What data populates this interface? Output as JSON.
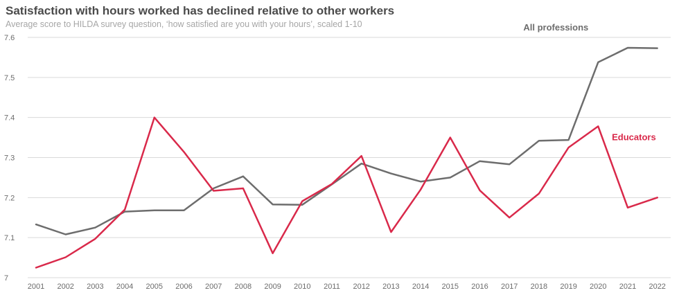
{
  "chart_data": {
    "type": "line",
    "title": "Satisfaction with hours worked has declined relative to other workers",
    "subtitle": "Average score to HILDA survey question, ‘how satisfied are you with your hours’, scaled 1-10",
    "x": [
      "2001",
      "2002",
      "2003",
      "2004",
      "2005",
      "2006",
      "2007",
      "2008",
      "2009",
      "2010",
      "2011",
      "2012",
      "2013",
      "2014",
      "2015",
      "2016",
      "2017",
      "2018",
      "2019",
      "2020",
      "2021",
      "2022"
    ],
    "ylim": [
      7,
      7.6
    ],
    "yticks": [
      "7",
      "7.1",
      "7.2",
      "7.3",
      "7.4",
      "7.5",
      "7.6"
    ],
    "grid": true,
    "series": [
      {
        "name": "All professions",
        "color": "#6d6d6d",
        "values": [
          7.133,
          7.108,
          7.125,
          7.165,
          7.168,
          7.168,
          7.223,
          7.253,
          7.183,
          7.182,
          7.233,
          7.285,
          7.26,
          7.24,
          7.25,
          7.291,
          7.283,
          7.342,
          7.344,
          7.538,
          7.574,
          7.573
        ]
      },
      {
        "name": "Educators",
        "color": "#d9294a",
        "values": [
          7.025,
          7.051,
          7.097,
          7.17,
          7.4,
          7.314,
          7.217,
          7.223,
          7.061,
          7.191,
          7.234,
          7.304,
          7.114,
          7.22,
          7.35,
          7.218,
          7.15,
          7.21,
          7.325,
          7.378,
          7.175,
          7.2
        ]
      }
    ]
  }
}
